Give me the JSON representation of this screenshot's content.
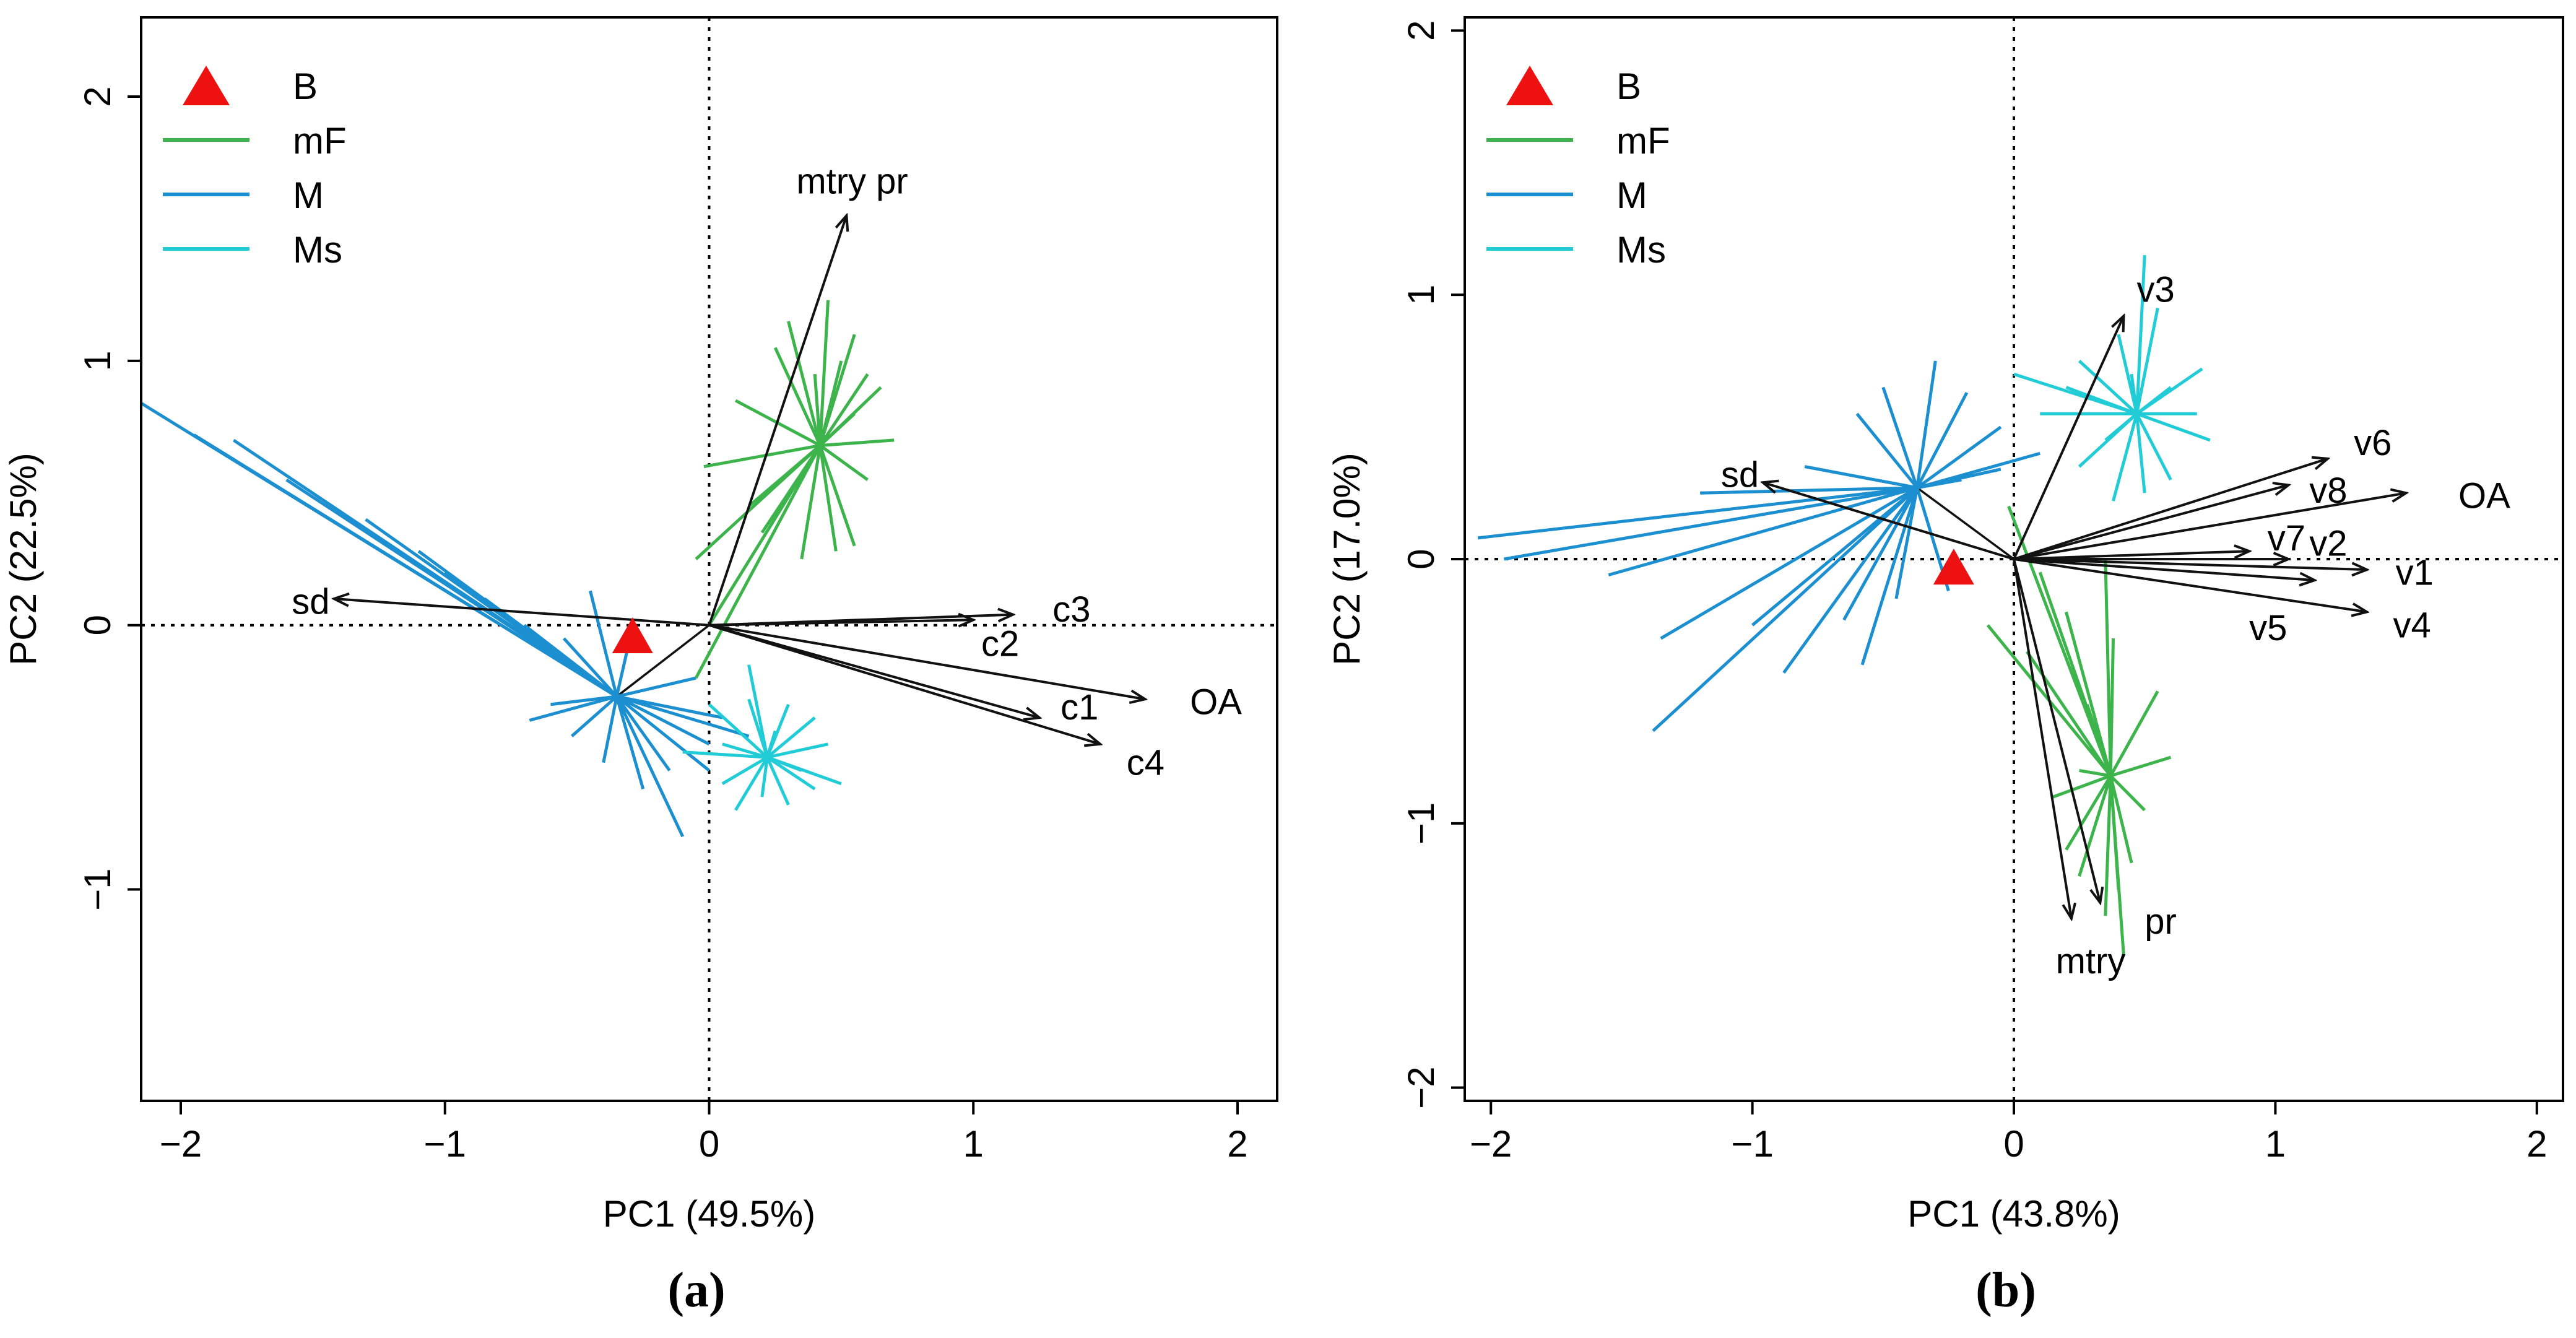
{
  "colors": {
    "B": "#ee1111",
    "mF": "#3cb44b",
    "M": "#1c8fd0",
    "Ms": "#22ccd6",
    "arrow": "#111111"
  },
  "chart_data": [
    {
      "type": "scatter",
      "subtype": "pca-biplot",
      "panel": "(a)",
      "xlabel": "PC1 (49.5%)",
      "ylabel": "PC2 (22.5%)",
      "xlim": [
        -2.15,
        2.15
      ],
      "ylim": [
        -1.8,
        2.3
      ],
      "xticks": [
        -2,
        -1,
        0,
        1,
        2
      ],
      "yticks": [
        -1,
        0,
        1,
        2
      ],
      "xtick_labels": [
        "−2",
        "−1",
        "0",
        "1",
        "2"
      ],
      "ytick_labels": [
        "−1",
        "0",
        "1",
        "2"
      ],
      "legend": {
        "position": "top-left",
        "entries": [
          {
            "name": "B",
            "symbol": "triangle"
          },
          {
            "name": "mF",
            "symbol": "line"
          },
          {
            "name": "M",
            "symbol": "line"
          },
          {
            "name": "Ms",
            "symbol": "line"
          }
        ]
      },
      "b_point": [
        -0.29,
        -0.05
      ],
      "series": [
        {
          "name": "M",
          "centroid": [
            -0.35,
            -0.27
          ],
          "points": [
            [
              -2.15,
              0.84
            ],
            [
              -1.95,
              0.72
            ],
            [
              -1.8,
              0.7
            ],
            [
              -1.6,
              0.55
            ],
            [
              -1.3,
              0.4
            ],
            [
              -1.1,
              0.28
            ],
            [
              -1.0,
              0.2
            ],
            [
              -0.85,
              0.1
            ],
            [
              -0.7,
              0.0
            ],
            [
              -0.55,
              -0.05
            ],
            [
              -0.45,
              0.13
            ],
            [
              -0.3,
              -0.05
            ],
            [
              -0.68,
              -0.36
            ],
            [
              -0.52,
              -0.42
            ],
            [
              -0.4,
              -0.52
            ],
            [
              -0.25,
              -0.62
            ],
            [
              -0.1,
              -0.8
            ],
            [
              0.0,
              -0.55
            ],
            [
              0.05,
              -0.35
            ],
            [
              0.15,
              -0.42
            ],
            [
              -0.2,
              -0.3
            ],
            [
              -0.6,
              -0.3
            ],
            [
              -0.05,
              -0.2
            ],
            [
              -0.15,
              -0.55
            ],
            [
              0.0,
              -0.45
            ]
          ]
        },
        {
          "name": "mF",
          "centroid": [
            0.42,
            0.68
          ],
          "points": [
            [
              0.45,
              1.23
            ],
            [
              0.3,
              1.15
            ],
            [
              0.5,
              1.0
            ],
            [
              0.6,
              0.95
            ],
            [
              0.55,
              1.1
            ],
            [
              0.65,
              0.9
            ],
            [
              0.7,
              0.7
            ],
            [
              0.6,
              0.55
            ],
            [
              0.55,
              0.3
            ],
            [
              0.48,
              0.28
            ],
            [
              0.35,
              0.25
            ],
            [
              0.2,
              0.35
            ],
            [
              -0.05,
              0.25
            ],
            [
              0.0,
              0.0
            ],
            [
              -0.05,
              -0.2
            ],
            [
              0.15,
              0.45
            ],
            [
              -0.02,
              0.6
            ],
            [
              0.1,
              0.85
            ],
            [
              0.25,
              1.05
            ],
            [
              0.4,
              0.95
            ],
            [
              0.3,
              0.5
            ],
            [
              0.55,
              0.8
            ]
          ]
        },
        {
          "name": "Ms",
          "centroid": [
            0.22,
            -0.5
          ],
          "points": [
            [
              0.15,
              -0.15
            ],
            [
              0.0,
              -0.3
            ],
            [
              0.05,
              -0.6
            ],
            [
              0.1,
              -0.7
            ],
            [
              0.2,
              -0.65
            ],
            [
              0.3,
              -0.68
            ],
            [
              0.4,
              -0.62
            ],
            [
              0.5,
              -0.6
            ],
            [
              0.45,
              -0.45
            ],
            [
              0.4,
              -0.35
            ],
            [
              0.3,
              -0.3
            ],
            [
              0.05,
              -0.45
            ],
            [
              0.15,
              -0.28
            ],
            [
              0.35,
              -0.55
            ],
            [
              0.25,
              -0.4
            ],
            [
              -0.1,
              -0.48
            ]
          ]
        }
      ],
      "vectors": [
        {
          "label": "mtry  pr",
          "end": [
            0.52,
            1.55
          ],
          "label_pos": [
            0.33,
            1.68
          ]
        },
        {
          "label": "sd",
          "end": [
            -1.42,
            0.1
          ],
          "label_pos": [
            -1.58,
            0.09
          ]
        },
        {
          "label": "c3",
          "end": [
            1.15,
            0.04
          ],
          "label_pos": [
            1.3,
            0.06
          ]
        },
        {
          "label": "c2",
          "end": [
            1.0,
            0.02
          ],
          "label_pos": [
            1.03,
            -0.07
          ]
        },
        {
          "label": "OA",
          "end": [
            1.65,
            -0.28
          ],
          "label_pos": [
            1.82,
            -0.29
          ]
        },
        {
          "label": "c1",
          "end": [
            1.25,
            -0.35
          ],
          "label_pos": [
            1.33,
            -0.31
          ]
        },
        {
          "label": "c4",
          "end": [
            1.48,
            -0.45
          ],
          "label_pos": [
            1.58,
            -0.52
          ]
        }
      ],
      "extra_lines": [
        [
          [
            -0.35,
            -0.27
          ],
          [
            0.0,
            0.0
          ]
        ]
      ]
    },
    {
      "type": "scatter",
      "subtype": "pca-biplot",
      "panel": "(b)",
      "xlabel": "PC1 (43.8%)",
      "ylabel": "PC2 (17.0%)",
      "xlim": [
        -2.1,
        2.1
      ],
      "ylim": [
        -2.05,
        2.05
      ],
      "xticks": [
        -2,
        -1,
        0,
        1,
        2
      ],
      "yticks": [
        -2,
        -1,
        0,
        1,
        2
      ],
      "xtick_labels": [
        "−2",
        "−1",
        "0",
        "1",
        "2"
      ],
      "ytick_labels": [
        "−2",
        "−1",
        "0",
        "1",
        "2"
      ],
      "legend": {
        "position": "top-left",
        "entries": [
          {
            "name": "B",
            "symbol": "triangle"
          },
          {
            "name": "mF",
            "symbol": "line"
          },
          {
            "name": "M",
            "symbol": "line"
          },
          {
            "name": "Ms",
            "symbol": "line"
          }
        ]
      },
      "b_point": [
        -0.23,
        -0.04
      ],
      "series": [
        {
          "name": "M",
          "centroid": [
            -0.37,
            0.27
          ],
          "points": [
            [
              -2.05,
              0.08
            ],
            [
              -1.95,
              0.0
            ],
            [
              -1.55,
              -0.06
            ],
            [
              -1.35,
              -0.3
            ],
            [
              -1.38,
              -0.65
            ],
            [
              -1.0,
              -0.25
            ],
            [
              -0.88,
              -0.43
            ],
            [
              -0.65,
              -0.23
            ],
            [
              -0.58,
              -0.4
            ],
            [
              -0.5,
              0.65
            ],
            [
              -0.3,
              0.75
            ],
            [
              -0.18,
              0.63
            ],
            [
              -0.05,
              0.5
            ],
            [
              0.1,
              0.4
            ],
            [
              -0.05,
              0.34
            ],
            [
              -0.2,
              0.3
            ],
            [
              -0.6,
              0.55
            ],
            [
              -0.8,
              0.35
            ],
            [
              -1.2,
              0.25
            ],
            [
              -0.25,
              -0.12
            ],
            [
              -0.45,
              -0.15
            ]
          ]
        },
        {
          "name": "mF",
          "centroid": [
            0.37,
            -0.82
          ],
          "points": [
            [
              -0.02,
              0.2
            ],
            [
              0.1,
              -0.05
            ],
            [
              0.2,
              -0.2
            ],
            [
              0.35,
              0.0
            ],
            [
              0.38,
              -0.3
            ],
            [
              0.55,
              -0.5
            ],
            [
              0.6,
              -0.75
            ],
            [
              0.5,
              -0.95
            ],
            [
              0.45,
              -1.15
            ],
            [
              0.4,
              -1.25
            ],
            [
              0.35,
              -1.35
            ],
            [
              0.25,
              -1.2
            ],
            [
              0.2,
              -1.1
            ],
            [
              0.15,
              -0.9
            ],
            [
              0.25,
              -0.8
            ],
            [
              0.05,
              -0.35
            ],
            [
              -0.1,
              -0.25
            ],
            [
              0.42,
              -1.5
            ],
            [
              0.28,
              -0.55
            ]
          ]
        },
        {
          "name": "Ms",
          "centroid": [
            0.47,
            0.55
          ],
          "points": [
            [
              0.5,
              1.15
            ],
            [
              0.25,
              0.75
            ],
            [
              0.4,
              0.85
            ],
            [
              0.55,
              0.95
            ],
            [
              0.72,
              0.72
            ],
            [
              0.7,
              0.55
            ],
            [
              0.75,
              0.45
            ],
            [
              0.6,
              0.3
            ],
            [
              0.5,
              0.25
            ],
            [
              0.38,
              0.22
            ],
            [
              0.25,
              0.35
            ],
            [
              0.0,
              0.7
            ],
            [
              0.1,
              0.55
            ],
            [
              0.2,
              0.65
            ],
            [
              0.35,
              0.45
            ],
            [
              0.6,
              0.65
            ],
            [
              0.45,
              0.7
            ]
          ]
        }
      ],
      "vectors": [
        {
          "label": "v3",
          "end": [
            0.42,
            0.92
          ],
          "label_pos": [
            0.47,
            1.02
          ]
        },
        {
          "label": "sd",
          "end": [
            -0.96,
            0.29
          ],
          "label_pos": [
            -1.12,
            0.32
          ]
        },
        {
          "label": "v6",
          "end": [
            1.2,
            0.38
          ],
          "label_pos": [
            1.3,
            0.44
          ]
        },
        {
          "label": "v8",
          "end": [
            1.05,
            0.28
          ],
          "label_pos": [
            1.13,
            0.26
          ]
        },
        {
          "label": "OA",
          "end": [
            1.5,
            0.25
          ],
          "label_pos": [
            1.7,
            0.24
          ]
        },
        {
          "label": "v7",
          "end": [
            0.9,
            0.03
          ],
          "label_pos": [
            0.97,
            0.08
          ]
        },
        {
          "label": "v2",
          "end": [
            1.05,
            0.0
          ],
          "label_pos": [
            1.13,
            0.06
          ]
        },
        {
          "label": "v1",
          "end": [
            1.35,
            -0.04
          ],
          "label_pos": [
            1.46,
            -0.05
          ]
        },
        {
          "label": "v5",
          "end": [
            1.15,
            -0.08
          ],
          "label_pos": [
            0.9,
            -0.26
          ]
        },
        {
          "label": "v4",
          "end": [
            1.35,
            -0.2
          ],
          "label_pos": [
            1.45,
            -0.25
          ]
        },
        {
          "label": "pr",
          "end": [
            0.33,
            -1.3
          ],
          "label_pos": [
            0.5,
            -1.37
          ]
        },
        {
          "label": "mtry",
          "end": [
            0.22,
            -1.36
          ],
          "label_pos": [
            0.16,
            -1.52
          ]
        }
      ],
      "extra_lines": [
        [
          [
            -0.37,
            0.27
          ],
          [
            0.0,
            0.0
          ]
        ]
      ]
    }
  ],
  "captions": [
    "(a)",
    "(b)"
  ]
}
